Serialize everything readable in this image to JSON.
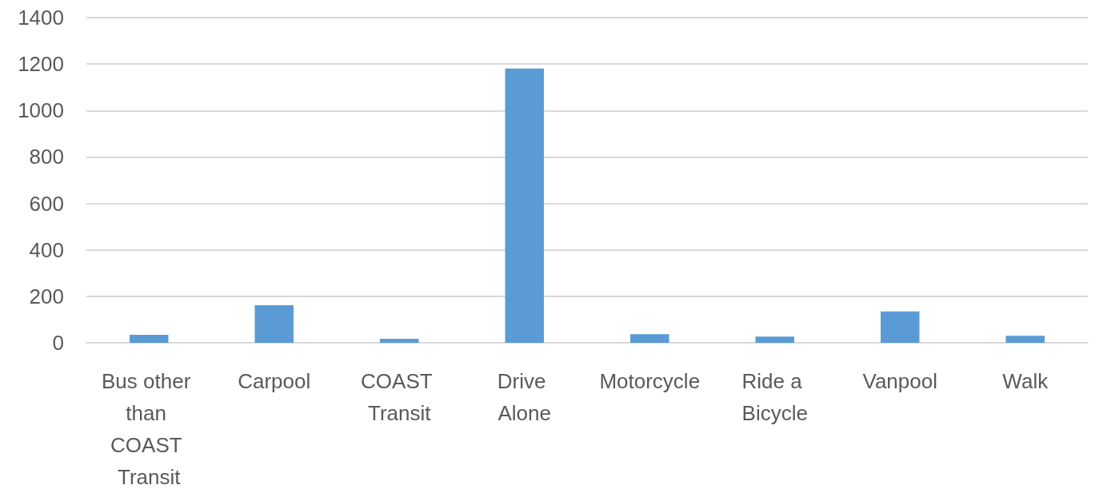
{
  "chart_data": {
    "type": "bar",
    "categories": [
      "Bus other than COAST Transit",
      "Carpool",
      "COAST Transit",
      "Drive Alone",
      "Motorcycle",
      "Ride a Bicycle",
      "Vanpool",
      "Walk"
    ],
    "values": [
      34,
      162,
      17,
      1181,
      37,
      27,
      135,
      30
    ],
    "color": "#5b9bd5",
    "ylim": [
      0,
      1400
    ],
    "yticks": [
      0,
      200,
      400,
      600,
      800,
      1000,
      1200,
      1400
    ],
    "grid": "y"
  }
}
